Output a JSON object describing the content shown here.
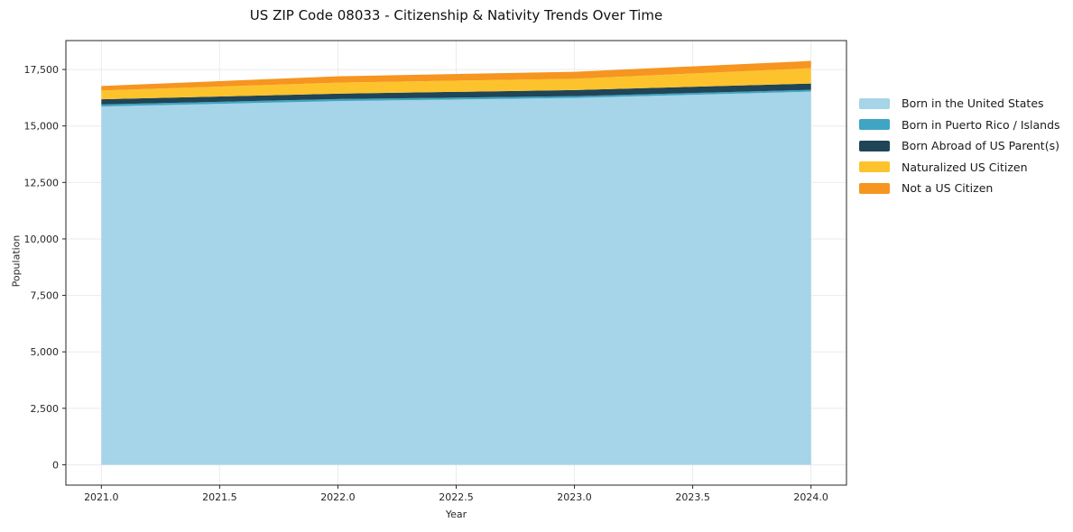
{
  "colors": {
    "grid": "#ebebeb",
    "axis": "#262626",
    "tick_text": "#262626",
    "background": "#ffffff"
  },
  "chart_data": {
    "type": "area",
    "stacked": true,
    "title": "US ZIP Code 08033 - Citizenship & Nativity Trends Over Time",
    "xlabel": "Year",
    "ylabel": "Population",
    "x": [
      2021,
      2022,
      2023,
      2024
    ],
    "series": [
      {
        "name": "Born in the United States",
        "color": "#a6d4e8",
        "values": [
          15860,
          16100,
          16240,
          16520
        ]
      },
      {
        "name": "Born in Puerto Rico / Islands",
        "color": "#3fa5c2",
        "values": [
          90,
          90,
          80,
          80
        ]
      },
      {
        "name": "Born Abroad of US Parent(s)",
        "color": "#1f4557",
        "values": [
          230,
          240,
          270,
          280
        ]
      },
      {
        "name": "Naturalized US Citizen",
        "color": "#fcc32d",
        "values": [
          390,
          490,
          500,
          680
        ]
      },
      {
        "name": "Not a US Citizen",
        "color": "#f6951f",
        "values": [
          200,
          280,
          310,
          320
        ]
      }
    ],
    "totals": [
      16770,
      17200,
      17400,
      17880
    ],
    "xticks": [
      2021.0,
      2021.5,
      2022.0,
      2022.5,
      2023.0,
      2023.5,
      2024.0
    ],
    "xtick_labels": [
      "2021.0",
      "2021.5",
      "2022.0",
      "2022.5",
      "2023.0",
      "2023.5",
      "2024.0"
    ],
    "yticks": [
      0,
      2500,
      5000,
      7500,
      10000,
      12500,
      15000,
      17500
    ],
    "ytick_labels": [
      "0",
      "2,500",
      "5,000",
      "7,500",
      "10,000",
      "12,500",
      "15,000",
      "17,500"
    ],
    "xlim": [
      2020.85,
      2024.15
    ],
    "ylim": [
      -900,
      18780
    ],
    "grid": true,
    "legend_position": "right-outside"
  }
}
